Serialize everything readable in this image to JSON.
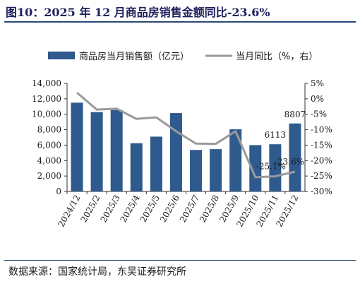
{
  "title": "图10：2025 年 12 月商品房销售金额同比-23.6%",
  "source": "数据来源：国家统计局，东吴证券研究所",
  "chart_data": {
    "type": "bar+line",
    "categories": [
      "2024/12",
      "2025/2",
      "2025/3",
      "2025/4",
      "2025/5",
      "2025/6",
      "2025/7",
      "2025/8",
      "2025/9",
      "2025/10",
      "2025/11",
      "2025/12"
    ],
    "series": [
      {
        "name": "商品房当月销售额（亿元）",
        "type": "bar",
        "axis": "left",
        "color": "#2e5a8e",
        "values": [
          11500,
          10280,
          10550,
          6250,
          7100,
          10150,
          5380,
          5480,
          8050,
          6000,
          6113,
          8807
        ]
      },
      {
        "name": "当月同比（%，右）",
        "type": "line",
        "axis": "right",
        "color": "#9a9a9a",
        "values": [
          2,
          -3.5,
          -3.2,
          -6.5,
          -6.0,
          -10.5,
          -14.5,
          -14.6,
          -10.5,
          -25.4,
          -25.1,
          -23.6
        ]
      }
    ],
    "left_axis": {
      "min": 0,
      "max": 14000,
      "step": 2000,
      "tick_labels": [
        "0",
        "2,000",
        "4,000",
        "6,000",
        "8,000",
        "10,000",
        "12,000",
        "14,000"
      ]
    },
    "right_axis": {
      "min": -30,
      "max": 5,
      "step": 5,
      "tick_labels": [
        "-30%",
        "-25%",
        "-20%",
        "-15%",
        "-10%",
        "-5%",
        "0%",
        "5%"
      ]
    },
    "data_labels": [
      {
        "text": "8807",
        "series": 0,
        "index": 11
      },
      {
        "text": "6113",
        "series": 0,
        "index": 10
      },
      {
        "text": "-23.6%",
        "series": 1,
        "index": 11
      },
      {
        "text": "-25.1%",
        "series": 1,
        "index": 10
      }
    ],
    "legend_position": "top",
    "grid": false
  }
}
